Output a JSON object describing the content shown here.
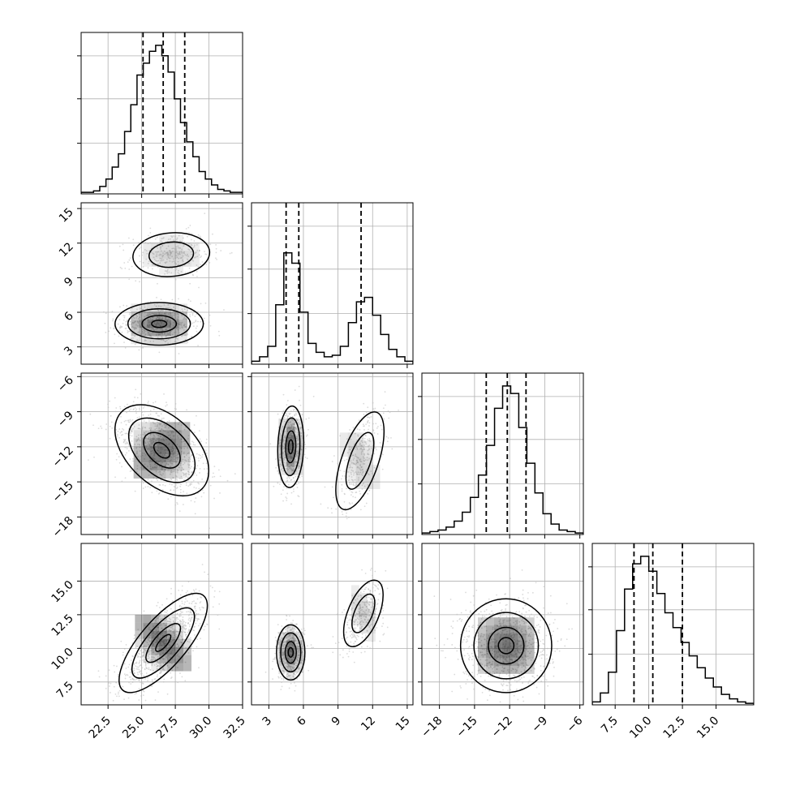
{
  "chart_data": {
    "type": "corner",
    "parameters": 4,
    "axes": [
      {
        "range": [
          20.5,
          32.5
        ],
        "ticks": [
          "22.5",
          "25.0",
          "27.5",
          "30.0",
          "32.5"
        ],
        "quantiles": [
          25.1,
          26.6,
          28.2
        ]
      },
      {
        "range": [
          1.5,
          15.5
        ],
        "ticks": [
          "3",
          "6",
          "9",
          "12",
          "15"
        ],
        "quantiles": [
          4.5,
          5.6,
          11.0
        ]
      },
      {
        "range": [
          -19.5,
          -5.7
        ],
        "ticks": [
          "-18",
          "-15",
          "-12",
          "-9",
          "-6"
        ],
        "quantiles": [
          -14.0,
          -12.2,
          -10.6
        ]
      },
      {
        "range": [
          5.8,
          17.8
        ],
        "ticks": [
          "7.5",
          "10.0",
          "12.5",
          "15.0"
        ],
        "quantiles": [
          8.9,
          10.3,
          12.5
        ]
      }
    ],
    "histograms": [
      [
        0.01,
        0.01,
        0.02,
        0.05,
        0.1,
        0.18,
        0.27,
        0.42,
        0.6,
        0.8,
        0.88,
        0.96,
        1.0,
        0.93,
        0.82,
        0.64,
        0.48,
        0.35,
        0.25,
        0.15,
        0.1,
        0.06,
        0.03,
        0.02,
        0.01,
        0.01
      ],
      [
        0.02,
        0.05,
        0.12,
        0.4,
        0.75,
        0.68,
        0.35,
        0.14,
        0.08,
        0.05,
        0.06,
        0.12,
        0.28,
        0.42,
        0.45,
        0.33,
        0.2,
        0.1,
        0.05,
        0.02
      ],
      [
        0.01,
        0.02,
        0.03,
        0.05,
        0.09,
        0.15,
        0.25,
        0.4,
        0.6,
        0.85,
        1.0,
        0.95,
        0.72,
        0.48,
        0.28,
        0.14,
        0.07,
        0.03,
        0.02,
        0.01
      ],
      [
        0.02,
        0.08,
        0.22,
        0.5,
        0.78,
        0.95,
        1.0,
        0.9,
        0.75,
        0.62,
        0.52,
        0.42,
        0.33,
        0.25,
        0.18,
        0.12,
        0.07,
        0.04,
        0.02,
        0.01
      ]
    ],
    "pairs": [
      {
        "row": 1,
        "col": 0,
        "modes": [
          {
            "mx": 26.3,
            "my": 5.0,
            "sx": 1.6,
            "sy": 0.9,
            "rho": 0.0,
            "w": 0.65
          },
          {
            "mx": 27.2,
            "my": 11.0,
            "sx": 1.5,
            "sy": 1.0,
            "rho": 0.1,
            "w": 0.35
          }
        ]
      },
      {
        "row": 2,
        "col": 0,
        "modes": [
          {
            "mx": 26.5,
            "my": -12.3,
            "sx": 1.7,
            "sy": 1.9,
            "rho": -0.45,
            "w": 1.0
          }
        ]
      },
      {
        "row": 2,
        "col": 1,
        "modes": [
          {
            "mx": 4.9,
            "my": -12.0,
            "sx": 0.55,
            "sy": 1.7,
            "rho": 0.1,
            "w": 0.65
          },
          {
            "mx": 10.9,
            "my": -13.2,
            "sx": 1.1,
            "sy": 2.2,
            "rho": 0.6,
            "w": 0.35
          }
        ]
      },
      {
        "row": 3,
        "col": 0,
        "modes": [
          {
            "mx": 26.6,
            "my": 10.4,
            "sx": 1.6,
            "sy": 1.8,
            "rho": 0.75,
            "w": 1.0
          }
        ]
      },
      {
        "row": 3,
        "col": 1,
        "modes": [
          {
            "mx": 4.9,
            "my": 9.7,
            "sx": 0.6,
            "sy": 1.0,
            "rho": 0.0,
            "w": 0.65
          },
          {
            "mx": 11.2,
            "my": 12.6,
            "sx": 0.9,
            "sy": 1.3,
            "rho": 0.55,
            "w": 0.35
          }
        ]
      },
      {
        "row": 3,
        "col": 2,
        "modes": [
          {
            "mx": -12.3,
            "my": 10.2,
            "sx": 1.9,
            "sy": 1.7,
            "rho": 0.0,
            "w": 1.0
          }
        ]
      }
    ],
    "colors": {
      "line": "#000000",
      "grid": "#b0b0b0",
      "points": "#bdbdbd",
      "density": "#000000"
    },
    "grid": true
  }
}
